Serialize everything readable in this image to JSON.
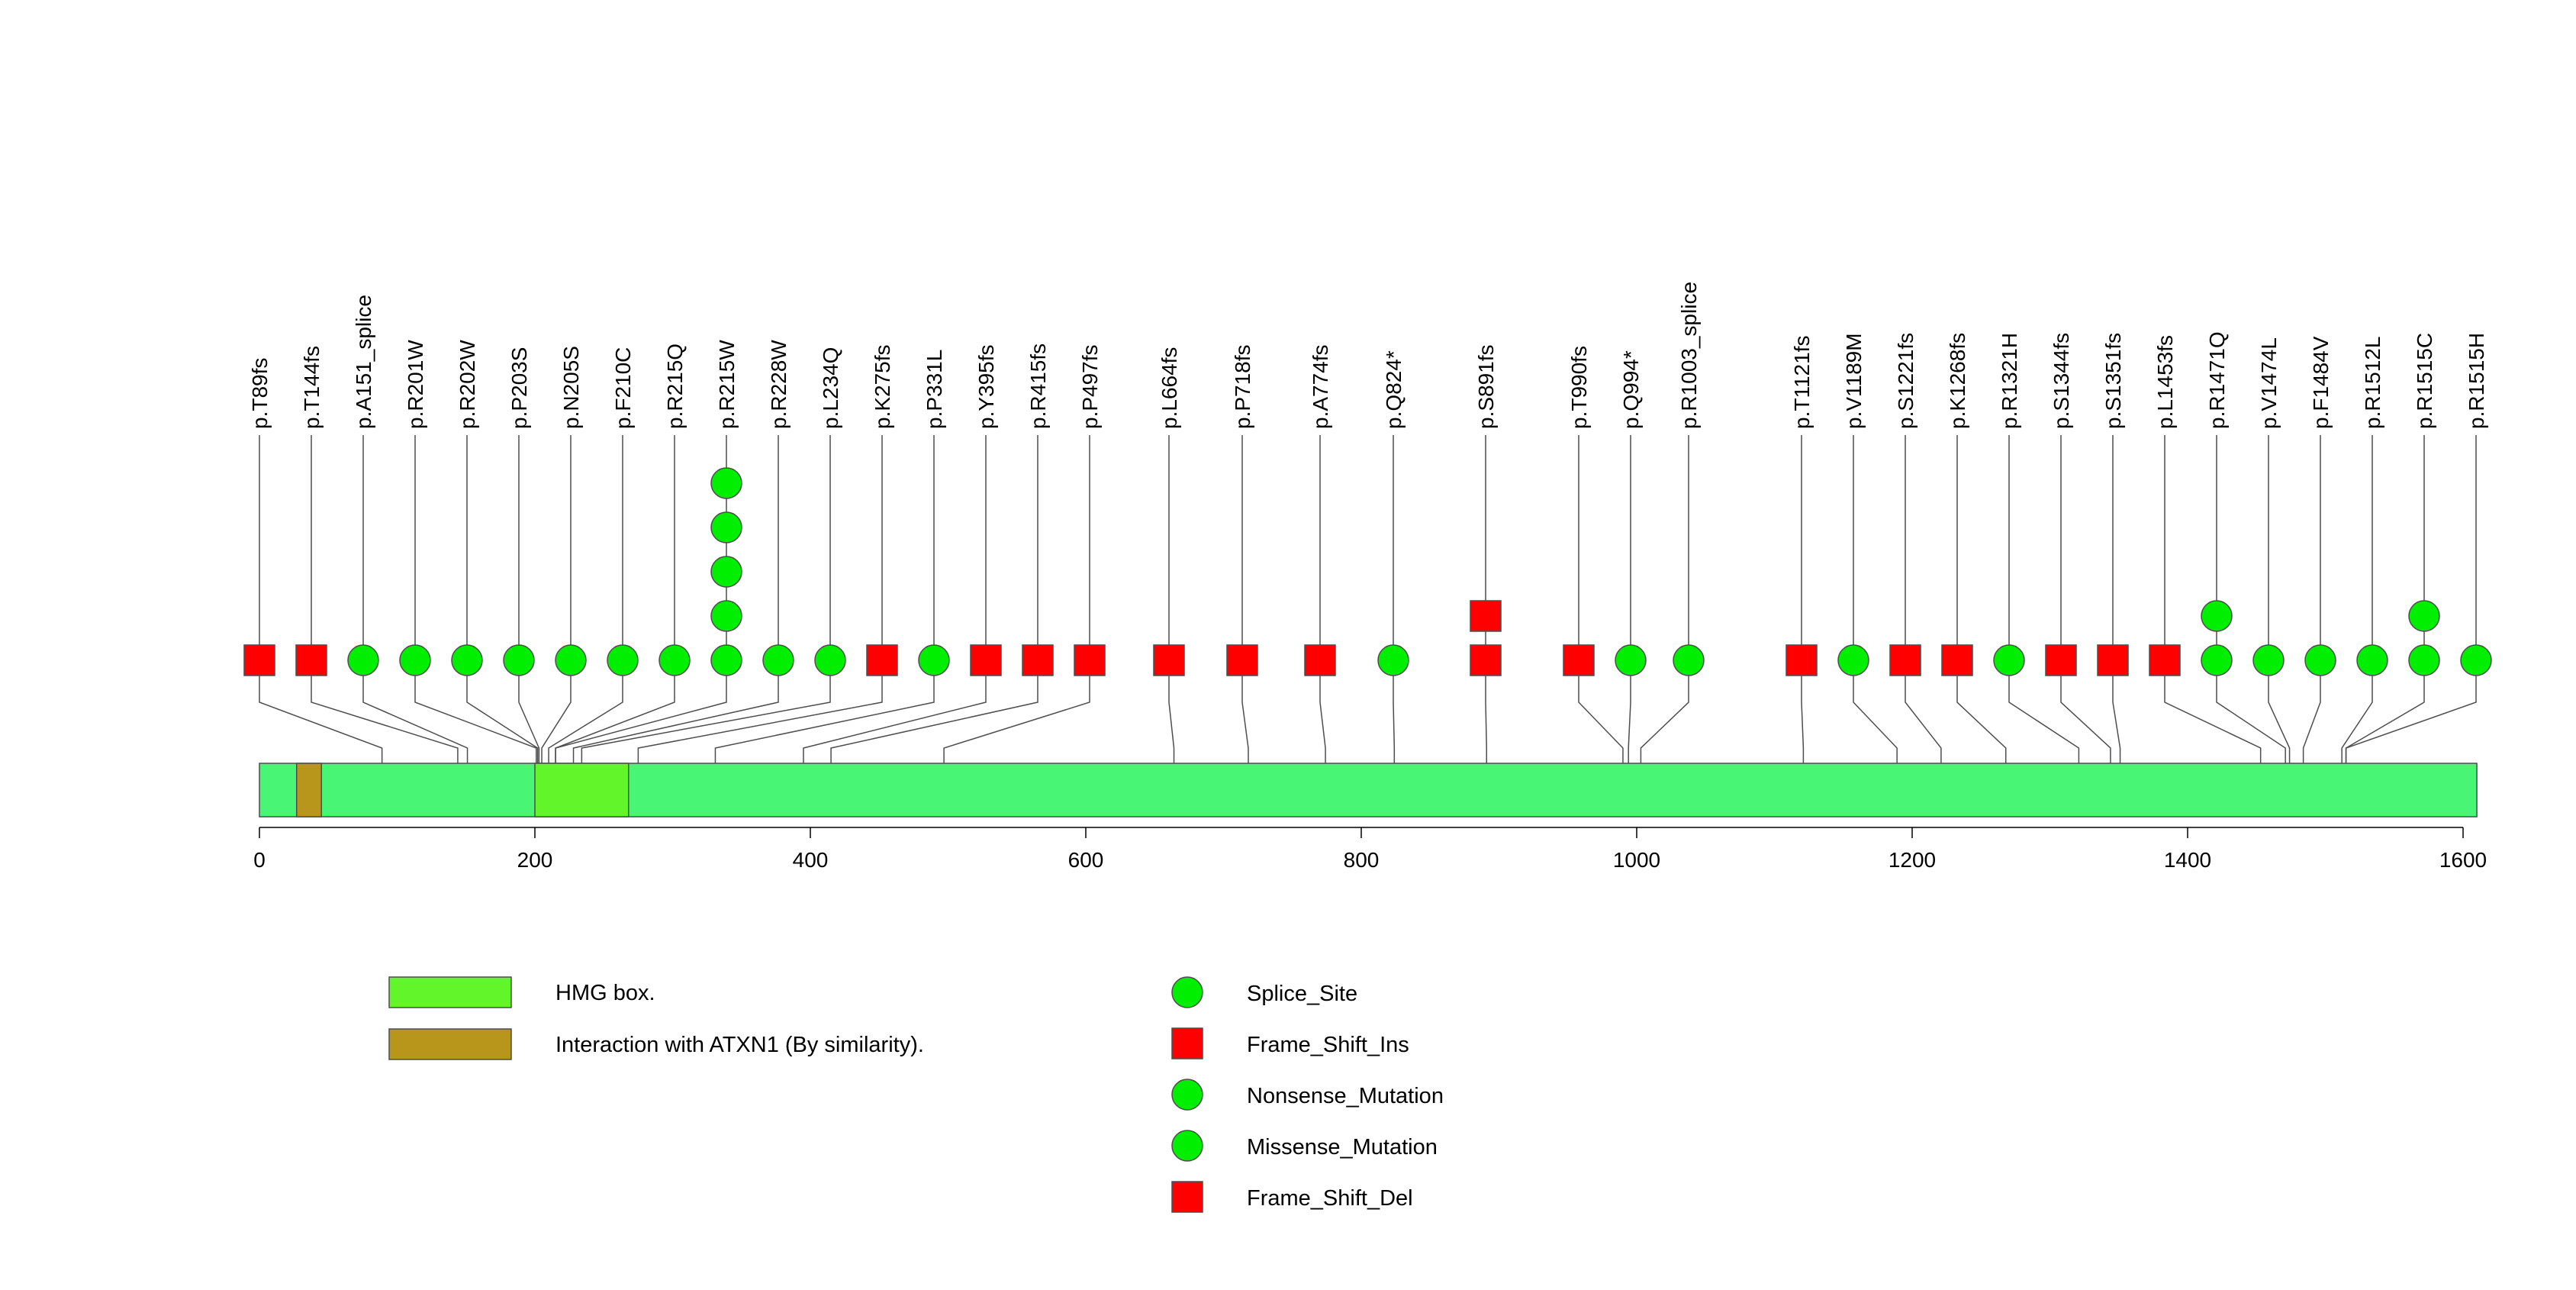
{
  "chart_data": {
    "type": "lollipop",
    "title": "",
    "x_axis": {
      "range": [
        0,
        1610
      ],
      "ticks": [
        0,
        200,
        400,
        600,
        800,
        1000,
        1200,
        1400,
        1600
      ],
      "tick_labels": [
        "0",
        "200",
        "400",
        "600",
        "800",
        "1000",
        "1200",
        "1400",
        "1600"
      ]
    },
    "protein_length": 1610,
    "colors": {
      "protein": "#48F574",
      "hmg_box": "#61F52A",
      "atxn1": "#B8961B",
      "circle": "#00EE00",
      "square": "#FF0000",
      "stroke": "#4D4D4D"
    },
    "domains": [
      {
        "label": "Interaction with ATXN1 (By similarity).",
        "start": 27,
        "end": 45,
        "color": "#B8961B"
      },
      {
        "label": "HMG box.",
        "start": 200,
        "end": 268,
        "color": "#61F52A"
      }
    ],
    "mutations": [
      {
        "label": "p.T89fs",
        "pos": 89,
        "markers": [
          "square"
        ]
      },
      {
        "label": "p.T144fs",
        "pos": 144,
        "markers": [
          "square"
        ]
      },
      {
        "label": "p.A151_splice",
        "pos": 151,
        "markers": [
          "circle"
        ]
      },
      {
        "label": "p.R201W",
        "pos": 201,
        "markers": [
          "circle"
        ]
      },
      {
        "label": "p.R202W",
        "pos": 202,
        "markers": [
          "circle"
        ]
      },
      {
        "label": "p.P203S",
        "pos": 203,
        "markers": [
          "circle"
        ]
      },
      {
        "label": "p.N205S",
        "pos": 205,
        "markers": [
          "circle"
        ]
      },
      {
        "label": "p.F210C",
        "pos": 210,
        "markers": [
          "circle"
        ]
      },
      {
        "label": "p.R215Q",
        "pos": 215,
        "markers": [
          "circle"
        ]
      },
      {
        "label": "p.R215W",
        "pos": 215,
        "markers": [
          "circle",
          "circle",
          "circle",
          "circle",
          "circle"
        ]
      },
      {
        "label": "p.R228W",
        "pos": 228,
        "markers": [
          "circle"
        ]
      },
      {
        "label": "p.L234Q",
        "pos": 234,
        "markers": [
          "circle"
        ]
      },
      {
        "label": "p.K275fs",
        "pos": 275,
        "markers": [
          "square"
        ]
      },
      {
        "label": "p.P331L",
        "pos": 331,
        "markers": [
          "circle"
        ]
      },
      {
        "label": "p.Y395fs",
        "pos": 395,
        "markers": [
          "square"
        ]
      },
      {
        "label": "p.R415fs",
        "pos": 415,
        "markers": [
          "square"
        ]
      },
      {
        "label": "p.P497fs",
        "pos": 497,
        "markers": [
          "square"
        ]
      },
      {
        "label": "p.L664fs",
        "pos": 664,
        "markers": [
          "square"
        ]
      },
      {
        "label": "p.P718fs",
        "pos": 718,
        "markers": [
          "square"
        ]
      },
      {
        "label": "p.A774fs",
        "pos": 774,
        "markers": [
          "square"
        ]
      },
      {
        "label": "p.Q824*",
        "pos": 824,
        "markers": [
          "circle"
        ]
      },
      {
        "label": "p.S891fs",
        "pos": 891,
        "markers": [
          "square",
          "square"
        ]
      },
      {
        "label": "p.T990fs",
        "pos": 990,
        "markers": [
          "square"
        ]
      },
      {
        "label": "p.Q994*",
        "pos": 994,
        "markers": [
          "circle"
        ]
      },
      {
        "label": "p.R1003_splice",
        "pos": 1003,
        "markers": [
          "circle"
        ]
      },
      {
        "label": "p.T1121fs",
        "pos": 1121,
        "markers": [
          "square"
        ]
      },
      {
        "label": "p.V1189M",
        "pos": 1189,
        "markers": [
          "circle"
        ]
      },
      {
        "label": "p.S1221fs",
        "pos": 1221,
        "markers": [
          "square"
        ]
      },
      {
        "label": "p.K1268fs",
        "pos": 1268,
        "markers": [
          "square"
        ]
      },
      {
        "label": "p.R1321H",
        "pos": 1321,
        "markers": [
          "circle"
        ]
      },
      {
        "label": "p.S1344fs",
        "pos": 1344,
        "markers": [
          "square"
        ]
      },
      {
        "label": "p.S1351fs",
        "pos": 1351,
        "markers": [
          "square"
        ]
      },
      {
        "label": "p.L1453fs",
        "pos": 1453,
        "markers": [
          "square"
        ]
      },
      {
        "label": "p.R1471Q",
        "pos": 1471,
        "markers": [
          "circle",
          "circle"
        ]
      },
      {
        "label": "p.V1474L",
        "pos": 1474,
        "markers": [
          "circle"
        ]
      },
      {
        "label": "p.F1484V",
        "pos": 1484,
        "markers": [
          "circle"
        ]
      },
      {
        "label": "p.R1512L",
        "pos": 1512,
        "markers": [
          "circle"
        ]
      },
      {
        "label": "p.R1515C",
        "pos": 1515,
        "markers": [
          "circle",
          "circle"
        ]
      },
      {
        "label": "p.R1515H",
        "pos": 1515,
        "markers": [
          "circle"
        ]
      }
    ],
    "legend": {
      "domains": [
        {
          "label": "HMG box.",
          "color": "#61F52A"
        },
        {
          "label": "Interaction with ATXN1 (By similarity).",
          "color": "#B8961B"
        }
      ],
      "mutation_types": [
        {
          "label": "Splice_Site",
          "shape": "circle"
        },
        {
          "label": "Frame_Shift_Ins",
          "shape": "square"
        },
        {
          "label": "Nonsense_Mutation",
          "shape": "circle"
        },
        {
          "label": "Missense_Mutation",
          "shape": "circle"
        },
        {
          "label": "Frame_Shift_Del",
          "shape": "square"
        }
      ]
    }
  }
}
